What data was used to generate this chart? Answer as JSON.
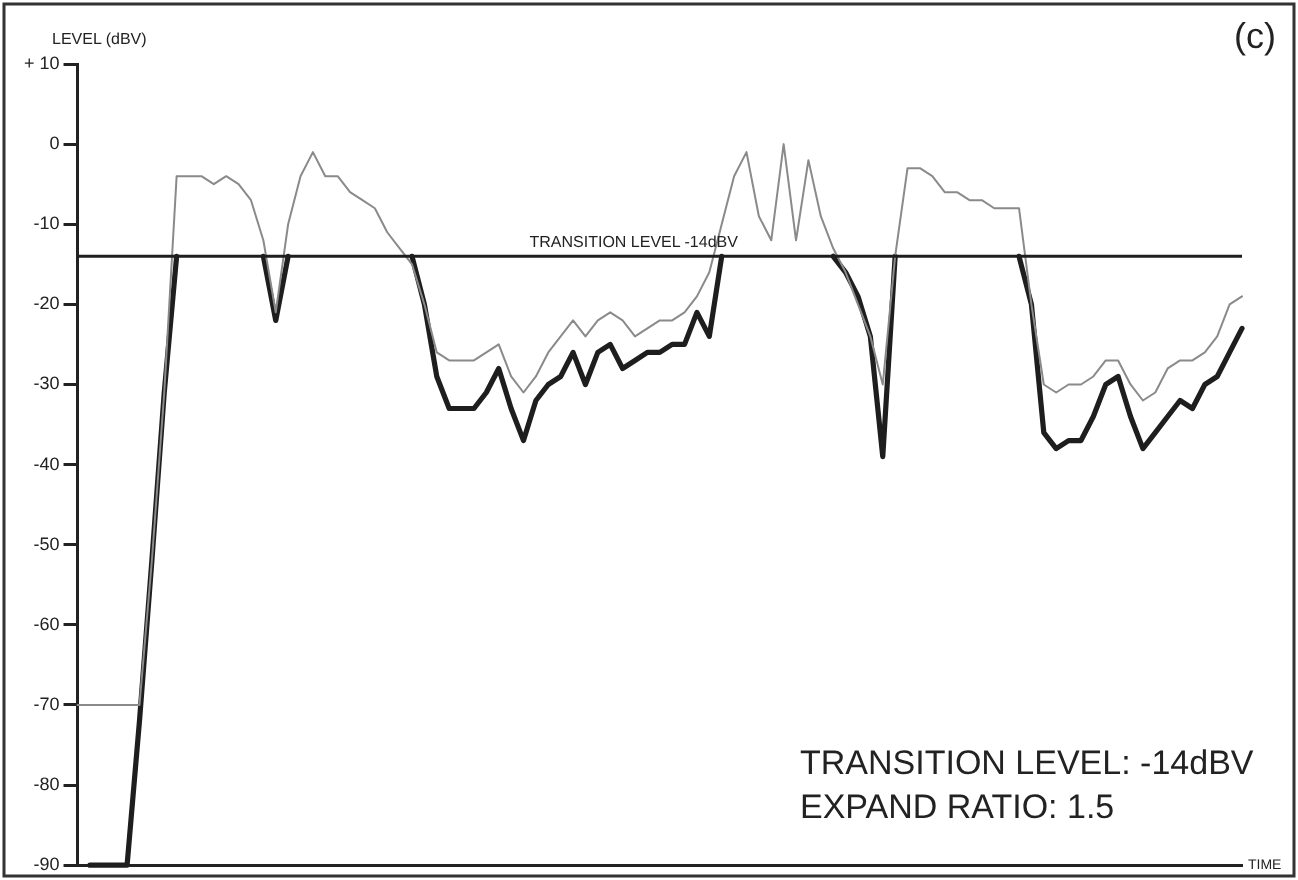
{
  "chart_data": {
    "type": "line",
    "ylabel": "LEVEL (dBV)",
    "xlabel": "TIME",
    "categories": [
      null,
      null,
      null,
      null,
      null,
      null,
      null,
      null,
      null,
      null,
      null,
      null,
      null,
      null,
      null,
      null,
      null,
      null,
      null,
      null,
      null,
      null,
      null,
      null,
      null,
      null,
      null,
      null,
      null,
      null,
      null,
      null,
      null,
      null,
      null,
      null,
      null,
      null,
      null,
      null,
      null,
      null,
      null,
      null,
      null,
      null,
      null,
      null,
      null,
      null,
      null,
      null,
      null,
      null,
      null,
      null,
      null,
      null,
      null,
      null,
      null,
      null,
      null,
      null,
      null,
      null,
      null,
      null,
      null,
      null,
      null,
      null,
      null,
      null,
      null,
      null,
      null,
      null,
      null,
      null,
      null,
      null,
      null,
      null,
      null,
      null,
      null,
      null,
      null,
      null,
      null,
      null,
      null,
      null,
      null
    ],
    "series": [
      {
        "color": "#8a8a8a",
        "values": [
          -70,
          -70,
          -70,
          -70,
          -70,
          -70,
          -52,
          -31,
          -4,
          -4,
          -4,
          -5,
          -4,
          -5,
          -7,
          -12,
          -21,
          -10,
          -4,
          -1,
          -4,
          -4,
          -6,
          -7,
          -8,
          -11,
          -13,
          -15,
          -20,
          -26,
          -27,
          -27,
          -27,
          -26,
          -25,
          -29,
          -31,
          -29,
          -26,
          -24,
          -22,
          -24,
          -22,
          -21,
          -22,
          -24,
          -23,
          -22,
          -22,
          -21,
          -19,
          -16,
          -10,
          -4,
          -1,
          -9,
          -12,
          0,
          -12,
          -2,
          -9,
          -13,
          -16,
          -20,
          -24,
          -30,
          -14,
          -3,
          -3,
          -4,
          -6,
          -6,
          -7,
          -7,
          -8,
          -8,
          -8,
          -20,
          -30,
          -31,
          -30,
          -30,
          -29,
          -27,
          -27,
          -30,
          -32,
          -31,
          -28,
          -27,
          -27,
          -26,
          -24,
          -20,
          -19
        ]
      },
      {
        "color": "#1e1e1e",
        "values": [
          null,
          -90,
          -90,
          -90,
          -90,
          -72,
          -52,
          -31,
          -14,
          null,
          null,
          null,
          null,
          null,
          null,
          -14,
          -22,
          -14,
          null,
          null,
          null,
          null,
          null,
          null,
          null,
          null,
          null,
          -14,
          -20,
          -29,
          -33,
          -33,
          -33,
          -31,
          -28,
          -33,
          -37,
          -32,
          -30,
          -29,
          -26,
          -30,
          -26,
          -25,
          -28,
          -27,
          -26,
          -26,
          -25,
          -25,
          -21,
          -24,
          -14,
          null,
          null,
          null,
          null,
          null,
          null,
          null,
          null,
          -14,
          -16,
          -19,
          -24,
          -39,
          -14,
          null,
          null,
          null,
          null,
          null,
          null,
          null,
          null,
          null,
          -14,
          -20,
          -36,
          -38,
          -37,
          -37,
          -34,
          -30,
          -29,
          -34,
          -38,
          -36,
          -34,
          -32,
          -33,
          -30,
          -29,
          -26,
          -23
        ]
      }
    ],
    "ylim": [
      -90,
      10
    ],
    "yticks": [
      {
        "value": 10,
        "label": "+ 10"
      },
      0,
      -10,
      -20,
      -30,
      -40,
      -50,
      -60,
      -70,
      -80,
      -90
    ],
    "ref_lines": [
      {
        "axis": "y",
        "value": -14,
        "label": "TRANSITION LEVEL -14dBV",
        "color": "#1e1e1e"
      }
    ],
    "annotations": [
      "(c)",
      "TRANSITION LEVEL: -14dBV",
      "EXPAND RATIO: 1.5"
    ],
    "tick_labels": "y",
    "grid": false,
    "legend": false,
    "marker": "none",
    "line_style": "solid"
  }
}
